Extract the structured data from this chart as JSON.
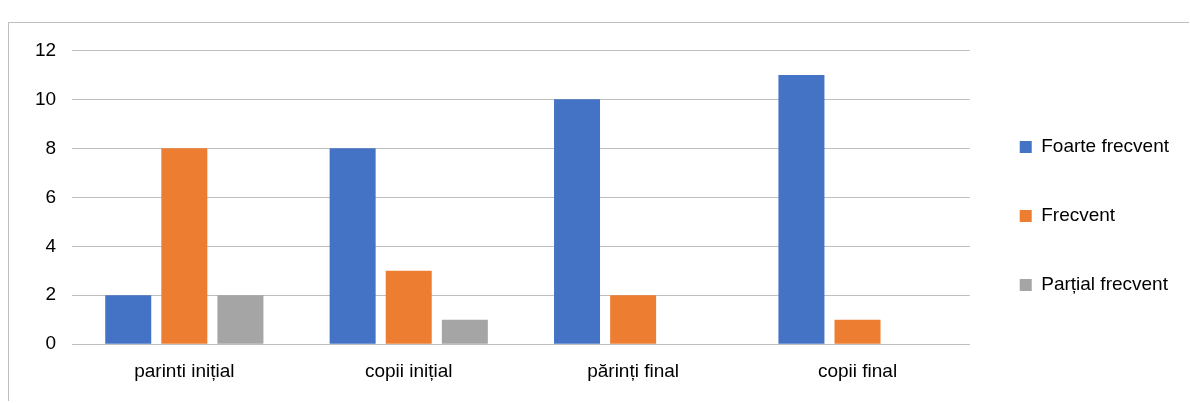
{
  "chart_data": {
    "type": "bar",
    "categories": [
      "parinti inițial",
      "copii inițial",
      "părinți final",
      "copii final"
    ],
    "series": [
      {
        "name": "Foarte frecvent",
        "color": "#4472c4",
        "values": [
          2,
          8,
          10,
          11
        ]
      },
      {
        "name": "Frecvent",
        "color": "#ed7d31",
        "values": [
          8,
          3,
          2,
          1
        ]
      },
      {
        "name": "Parțial frecvent",
        "color": "#a5a5a5",
        "values": [
          2,
          1,
          0,
          0
        ]
      }
    ],
    "ylim": [
      0,
      12
    ],
    "yticks": [
      0,
      2,
      4,
      6,
      8,
      10,
      12
    ],
    "grid": "y",
    "legend": "right"
  }
}
